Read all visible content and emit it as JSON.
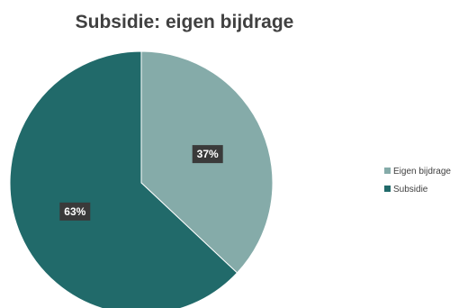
{
  "chart_data": {
    "type": "pie",
    "title": "Subsidie: eigen bijdrage",
    "categories": [
      "Eigen bijdrage",
      "Subsidie"
    ],
    "values": [
      37,
      63
    ],
    "data_labels": [
      "37%",
      "63%"
    ],
    "colors": [
      "#85ABA9",
      "#216A6A"
    ],
    "legend_position": "right"
  }
}
